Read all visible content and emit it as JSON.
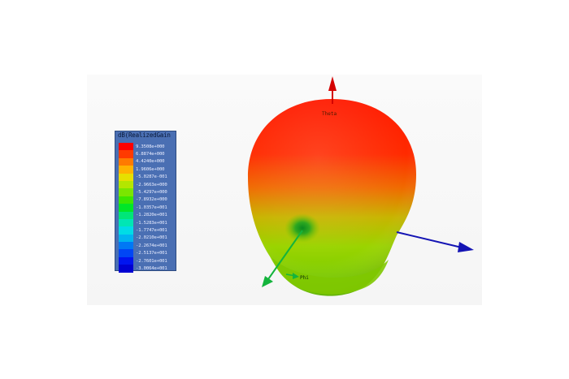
{
  "legend": {
    "title": "dB(RealizedGain",
    "entries": [
      {
        "label": "9.3508e+000",
        "color": "#ff0000"
      },
      {
        "label": "6.8874e+000",
        "color": "#ff3a00"
      },
      {
        "label": "4.4240e+000",
        "color": "#ff7a00"
      },
      {
        "label": "1.9606e+000",
        "color": "#ffb300"
      },
      {
        "label": "-5.0287e-001",
        "color": "#e6e000"
      },
      {
        "label": "-2.9663e+000",
        "color": "#b4e600"
      },
      {
        "label": "-5.4297e+000",
        "color": "#7ae600"
      },
      {
        "label": "-7.8932e+000",
        "color": "#3ce600"
      },
      {
        "label": "-1.0357e+001",
        "color": "#00e628"
      },
      {
        "label": "-1.2820e+001",
        "color": "#00e678"
      },
      {
        "label": "-1.5283e+001",
        "color": "#00e6b4"
      },
      {
        "label": "-1.7747e+001",
        "color": "#00dce6"
      },
      {
        "label": "-2.0210e+001",
        "color": "#00b4f0"
      },
      {
        "label": "-2.2674e+001",
        "color": "#0078f5"
      },
      {
        "label": "-2.5137e+001",
        "color": "#0046f5"
      },
      {
        "label": "-2.7601e+001",
        "color": "#0014f0"
      },
      {
        "label": "-3.0064e+001",
        "color": "#0000d2"
      }
    ]
  },
  "axes": {
    "theta_label": "Theta",
    "phi_label": "Phi",
    "z_axis_color": "#d40000",
    "x_axis_color": "#1414b4",
    "y_axis_color": "#14b43c"
  }
}
